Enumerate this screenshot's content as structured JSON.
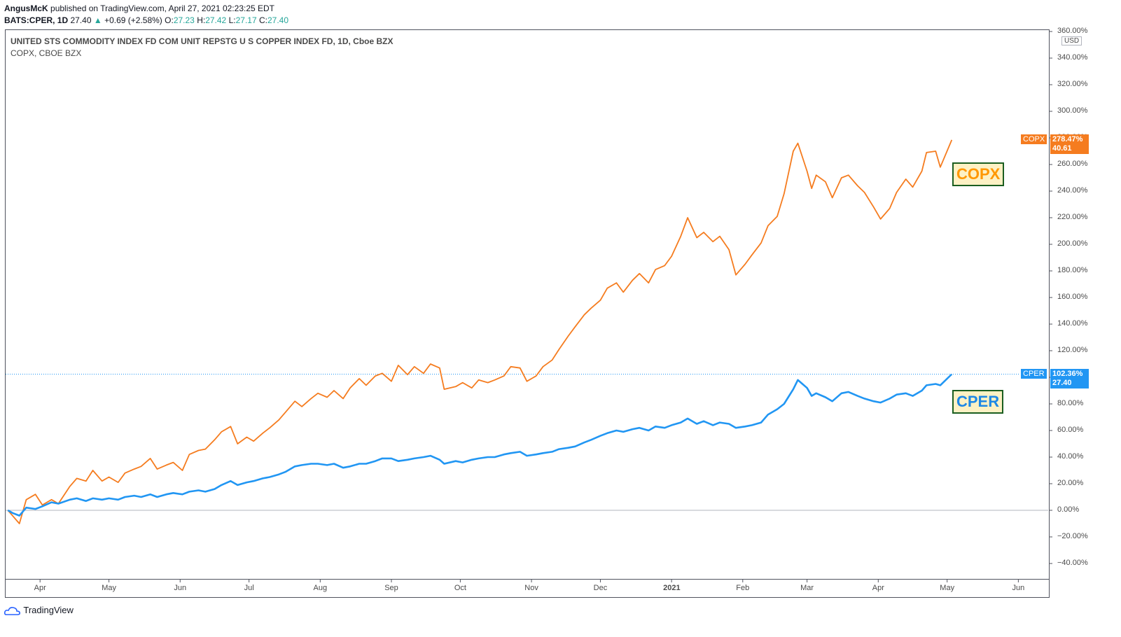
{
  "header": {
    "author": "AngusMcK",
    "published_text": "published on TradingView.com, April 27, 2021 02:23:25 EDT",
    "symbol_line": "BATS:CPER, 1D",
    "last": "27.40",
    "change_arrow": "▲",
    "change": "+0.69 (+2.58%)",
    "o_label": "O:",
    "o": "27.23",
    "h_label": "H:",
    "h": "27.42",
    "l_label": "L:",
    "l": "27.17",
    "c_label": "C:",
    "c": "27.40"
  },
  "chart_data": {
    "type": "line",
    "title": "UNITED STS COMMODITY INDEX FD COM UNIT REPSTG U S COPPER INDEX FD, 1D, Cboe BZX",
    "subtitle": "COPX, CBOE BZX",
    "xlabel": "",
    "ylabel": "",
    "y_unit_label": "USD",
    "ylim": [
      -50,
      360
    ],
    "y_ticks": [
      -40,
      -20,
      0,
      20,
      40,
      60,
      80,
      100,
      120,
      140,
      160,
      180,
      200,
      220,
      240,
      260,
      280,
      300,
      320,
      340,
      360
    ],
    "x_ticks": [
      "Apr",
      "May",
      "Jun",
      "Jul",
      "Aug",
      "Sep",
      "Oct",
      "Nov",
      "Dec",
      "2021",
      "Feb",
      "Mar",
      "Apr",
      "May",
      "Jun"
    ],
    "x_tick_dates": [
      "2020-04-01",
      "2020-05-01",
      "2020-06-01",
      "2020-07-01",
      "2020-08-01",
      "2020-09-01",
      "2020-10-01",
      "2020-11-01",
      "2020-12-01",
      "2021-01-01",
      "2021-02-01",
      "2021-03-01",
      "2021-04-01",
      "2021-05-01",
      "2021-06-01"
    ],
    "x_range": [
      "2020-03-17",
      "2021-06-14"
    ],
    "grid": false,
    "baseline": 0,
    "series": [
      {
        "name": "COPX",
        "color": "#f57c1f",
        "last_pct": "278.47%",
        "last_price": "40.61",
        "points": [
          [
            "2020-03-18",
            0
          ],
          [
            "2020-03-20",
            -4
          ],
          [
            "2020-03-23",
            -10
          ],
          [
            "2020-03-26",
            8
          ],
          [
            "2020-03-30",
            12
          ],
          [
            "2020-04-02",
            4
          ],
          [
            "2020-04-06",
            8
          ],
          [
            "2020-04-09",
            5
          ],
          [
            "2020-04-14",
            18
          ],
          [
            "2020-04-17",
            24
          ],
          [
            "2020-04-21",
            22
          ],
          [
            "2020-04-24",
            30
          ],
          [
            "2020-04-28",
            22
          ],
          [
            "2020-05-01",
            25
          ],
          [
            "2020-05-05",
            21
          ],
          [
            "2020-05-08",
            28
          ],
          [
            "2020-05-12",
            31
          ],
          [
            "2020-05-15",
            33
          ],
          [
            "2020-05-19",
            39
          ],
          [
            "2020-05-22",
            31
          ],
          [
            "2020-05-26",
            34
          ],
          [
            "2020-05-29",
            36
          ],
          [
            "2020-06-02",
            30
          ],
          [
            "2020-06-05",
            42
          ],
          [
            "2020-06-09",
            45
          ],
          [
            "2020-06-12",
            46
          ],
          [
            "2020-06-16",
            53
          ],
          [
            "2020-06-19",
            59
          ],
          [
            "2020-06-23",
            63
          ],
          [
            "2020-06-26",
            50
          ],
          [
            "2020-06-30",
            55
          ],
          [
            "2020-07-03",
            52
          ],
          [
            "2020-07-07",
            58
          ],
          [
            "2020-07-10",
            62
          ],
          [
            "2020-07-14",
            68
          ],
          [
            "2020-07-17",
            74
          ],
          [
            "2020-07-21",
            82
          ],
          [
            "2020-07-24",
            78
          ],
          [
            "2020-07-28",
            84
          ],
          [
            "2020-07-31",
            88
          ],
          [
            "2020-08-04",
            85
          ],
          [
            "2020-08-07",
            90
          ],
          [
            "2020-08-11",
            84
          ],
          [
            "2020-08-14",
            92
          ],
          [
            "2020-08-18",
            99
          ],
          [
            "2020-08-21",
            94
          ],
          [
            "2020-08-25",
            101
          ],
          [
            "2020-08-28",
            103
          ],
          [
            "2020-09-01",
            97
          ],
          [
            "2020-09-04",
            109
          ],
          [
            "2020-09-08",
            102
          ],
          [
            "2020-09-11",
            108
          ],
          [
            "2020-09-15",
            103
          ],
          [
            "2020-09-18",
            110
          ],
          [
            "2020-09-22",
            107
          ],
          [
            "2020-09-24",
            91
          ],
          [
            "2020-09-29",
            93
          ],
          [
            "2020-10-02",
            96
          ],
          [
            "2020-10-06",
            92
          ],
          [
            "2020-10-09",
            98
          ],
          [
            "2020-10-13",
            96
          ],
          [
            "2020-10-16",
            98
          ],
          [
            "2020-10-20",
            101
          ],
          [
            "2020-10-23",
            108
          ],
          [
            "2020-10-27",
            107
          ],
          [
            "2020-10-30",
            97
          ],
          [
            "2020-11-03",
            101
          ],
          [
            "2020-11-06",
            108
          ],
          [
            "2020-11-10",
            113
          ],
          [
            "2020-11-13",
            121
          ],
          [
            "2020-11-17",
            131
          ],
          [
            "2020-11-20",
            138
          ],
          [
            "2020-11-24",
            147
          ],
          [
            "2020-11-27",
            152
          ],
          [
            "2020-12-01",
            158
          ],
          [
            "2020-12-04",
            167
          ],
          [
            "2020-12-08",
            171
          ],
          [
            "2020-12-11",
            164
          ],
          [
            "2020-12-15",
            173
          ],
          [
            "2020-12-18",
            178
          ],
          [
            "2020-12-22",
            171
          ],
          [
            "2020-12-25",
            181
          ],
          [
            "2020-12-29",
            184
          ],
          [
            "2021-01-01",
            191
          ],
          [
            "2021-01-05",
            206
          ],
          [
            "2021-01-08",
            220
          ],
          [
            "2021-01-12",
            205
          ],
          [
            "2021-01-15",
            209
          ],
          [
            "2021-01-19",
            202
          ],
          [
            "2021-01-22",
            206
          ],
          [
            "2021-01-26",
            196
          ],
          [
            "2021-01-29",
            177
          ],
          [
            "2021-02-02",
            185
          ],
          [
            "2021-02-05",
            192
          ],
          [
            "2021-02-09",
            201
          ],
          [
            "2021-02-12",
            214
          ],
          [
            "2021-02-16",
            221
          ],
          [
            "2021-02-19",
            238
          ],
          [
            "2021-02-23",
            270
          ],
          [
            "2021-02-25",
            276
          ],
          [
            "2021-03-01",
            255
          ],
          [
            "2021-03-03",
            242
          ],
          [
            "2021-03-05",
            252
          ],
          [
            "2021-03-09",
            247
          ],
          [
            "2021-03-12",
            235
          ],
          [
            "2021-03-16",
            250
          ],
          [
            "2021-03-19",
            252
          ],
          [
            "2021-03-23",
            244
          ],
          [
            "2021-03-26",
            239
          ],
          [
            "2021-03-30",
            228
          ],
          [
            "2021-04-02",
            219
          ],
          [
            "2021-04-06",
            227
          ],
          [
            "2021-04-09",
            239
          ],
          [
            "2021-04-13",
            249
          ],
          [
            "2021-04-16",
            243
          ],
          [
            "2021-04-20",
            255
          ],
          [
            "2021-04-22",
            269
          ],
          [
            "2021-04-26",
            270
          ],
          [
            "2021-04-28",
            258
          ],
          [
            "2021-05-03",
            278.47
          ]
        ]
      },
      {
        "name": "CPER",
        "color": "#2196f3",
        "last_pct": "102.36%",
        "last_price": "27.40",
        "points": [
          [
            "2020-03-18",
            0
          ],
          [
            "2020-03-20",
            -2
          ],
          [
            "2020-03-23",
            -4
          ],
          [
            "2020-03-26",
            2
          ],
          [
            "2020-03-30",
            1
          ],
          [
            "2020-04-02",
            3
          ],
          [
            "2020-04-06",
            6
          ],
          [
            "2020-04-09",
            5
          ],
          [
            "2020-04-14",
            8
          ],
          [
            "2020-04-17",
            9
          ],
          [
            "2020-04-21",
            7
          ],
          [
            "2020-04-24",
            9
          ],
          [
            "2020-04-28",
            8
          ],
          [
            "2020-05-01",
            9
          ],
          [
            "2020-05-05",
            8
          ],
          [
            "2020-05-08",
            10
          ],
          [
            "2020-05-12",
            11
          ],
          [
            "2020-05-15",
            10
          ],
          [
            "2020-05-19",
            12
          ],
          [
            "2020-05-22",
            10
          ],
          [
            "2020-05-26",
            12
          ],
          [
            "2020-05-29",
            13
          ],
          [
            "2020-06-02",
            12
          ],
          [
            "2020-06-05",
            14
          ],
          [
            "2020-06-09",
            15
          ],
          [
            "2020-06-12",
            14
          ],
          [
            "2020-06-16",
            16
          ],
          [
            "2020-06-19",
            19
          ],
          [
            "2020-06-23",
            22
          ],
          [
            "2020-06-26",
            19
          ],
          [
            "2020-06-30",
            21
          ],
          [
            "2020-07-03",
            22
          ],
          [
            "2020-07-07",
            24
          ],
          [
            "2020-07-10",
            25
          ],
          [
            "2020-07-14",
            27
          ],
          [
            "2020-07-17",
            29
          ],
          [
            "2020-07-21",
            33
          ],
          [
            "2020-07-24",
            34
          ],
          [
            "2020-07-28",
            35
          ],
          [
            "2020-07-31",
            35
          ],
          [
            "2020-08-04",
            34
          ],
          [
            "2020-08-07",
            35
          ],
          [
            "2020-08-11",
            32
          ],
          [
            "2020-08-14",
            33
          ],
          [
            "2020-08-18",
            35
          ],
          [
            "2020-08-21",
            35
          ],
          [
            "2020-08-25",
            37
          ],
          [
            "2020-08-28",
            39
          ],
          [
            "2020-09-01",
            39
          ],
          [
            "2020-09-04",
            37
          ],
          [
            "2020-09-08",
            38
          ],
          [
            "2020-09-11",
            39
          ],
          [
            "2020-09-15",
            40
          ],
          [
            "2020-09-18",
            41
          ],
          [
            "2020-09-22",
            38
          ],
          [
            "2020-09-24",
            35
          ],
          [
            "2020-09-29",
            37
          ],
          [
            "2020-10-02",
            36
          ],
          [
            "2020-10-06",
            38
          ],
          [
            "2020-10-09",
            39
          ],
          [
            "2020-10-13",
            40
          ],
          [
            "2020-10-16",
            40
          ],
          [
            "2020-10-20",
            42
          ],
          [
            "2020-10-23",
            43
          ],
          [
            "2020-10-27",
            44
          ],
          [
            "2020-10-30",
            41
          ],
          [
            "2020-11-03",
            42
          ],
          [
            "2020-11-06",
            43
          ],
          [
            "2020-11-10",
            44
          ],
          [
            "2020-11-13",
            46
          ],
          [
            "2020-11-17",
            47
          ],
          [
            "2020-11-20",
            48
          ],
          [
            "2020-11-24",
            51
          ],
          [
            "2020-11-27",
            53
          ],
          [
            "2020-12-01",
            56
          ],
          [
            "2020-12-04",
            58
          ],
          [
            "2020-12-08",
            60
          ],
          [
            "2020-12-11",
            59
          ],
          [
            "2020-12-15",
            61
          ],
          [
            "2020-12-18",
            62
          ],
          [
            "2020-12-22",
            60
          ],
          [
            "2020-12-25",
            63
          ],
          [
            "2020-12-29",
            62
          ],
          [
            "2021-01-01",
            64
          ],
          [
            "2021-01-05",
            66
          ],
          [
            "2021-01-08",
            69
          ],
          [
            "2021-01-12",
            65
          ],
          [
            "2021-01-15",
            67
          ],
          [
            "2021-01-19",
            64
          ],
          [
            "2021-01-22",
            66
          ],
          [
            "2021-01-26",
            65
          ],
          [
            "2021-01-29",
            62
          ],
          [
            "2021-02-02",
            63
          ],
          [
            "2021-02-05",
            64
          ],
          [
            "2021-02-09",
            66
          ],
          [
            "2021-02-12",
            72
          ],
          [
            "2021-02-16",
            76
          ],
          [
            "2021-02-19",
            80
          ],
          [
            "2021-02-23",
            91
          ],
          [
            "2021-02-25",
            98
          ],
          [
            "2021-03-01",
            92
          ],
          [
            "2021-03-03",
            86
          ],
          [
            "2021-03-05",
            88
          ],
          [
            "2021-03-09",
            85
          ],
          [
            "2021-03-12",
            82
          ],
          [
            "2021-03-16",
            88
          ],
          [
            "2021-03-19",
            89
          ],
          [
            "2021-03-23",
            86
          ],
          [
            "2021-03-26",
            84
          ],
          [
            "2021-03-30",
            82
          ],
          [
            "2021-04-02",
            81
          ],
          [
            "2021-04-06",
            84
          ],
          [
            "2021-04-09",
            87
          ],
          [
            "2021-04-13",
            88
          ],
          [
            "2021-04-16",
            86
          ],
          [
            "2021-04-20",
            90
          ],
          [
            "2021-04-22",
            94
          ],
          [
            "2021-04-26",
            95
          ],
          [
            "2021-04-28",
            94
          ],
          [
            "2021-05-03",
            102.36
          ]
        ]
      }
    ],
    "annotations": [
      {
        "text": "COPX",
        "color": "#ff9800"
      },
      {
        "text": "CPER",
        "color": "#1e88e5"
      }
    ],
    "crosshair_level": 102.36
  },
  "footer": {
    "brand": "TradingView"
  }
}
